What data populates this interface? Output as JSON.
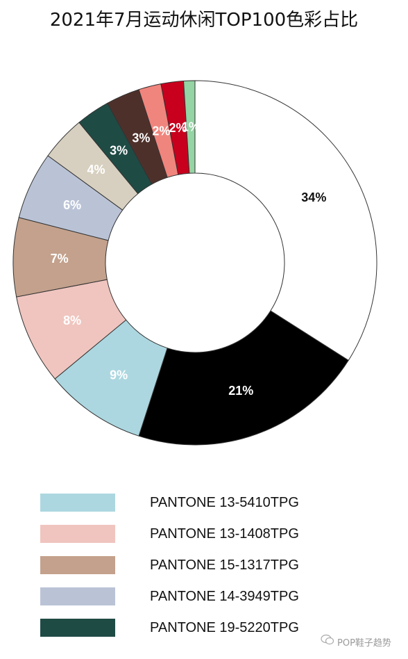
{
  "title": "2021年7月运动休闲TOP100色彩占比",
  "chart_data": {
    "type": "pie",
    "style": "donut",
    "title": "2021年7月运动休闲TOP100色彩占比",
    "slices": [
      {
        "label": "34%",
        "value": 34,
        "color": "#ffffff",
        "label_color": "#111111"
      },
      {
        "label": "21%",
        "value": 21,
        "color": "#000000",
        "label_color": "#ffffff"
      },
      {
        "label": "9%",
        "value": 9,
        "color": "#acd7e0",
        "label_color": "#ffffff"
      },
      {
        "label": "8%",
        "value": 8,
        "color": "#f0c5bf",
        "label_color": "#ffffff"
      },
      {
        "label": "7%",
        "value": 7,
        "color": "#c3a18c",
        "label_color": "#ffffff"
      },
      {
        "label": "6%",
        "value": 6,
        "color": "#bac3d6",
        "label_color": "#ffffff"
      },
      {
        "label": "4%",
        "value": 4,
        "color": "#d7d0c0",
        "label_color": "#ffffff"
      },
      {
        "label": "3%",
        "value": 3,
        "color": "#1f4b45",
        "label_color": "#ffffff"
      },
      {
        "label": "3%",
        "value": 3,
        "color": "#4e302b",
        "label_color": "#ffffff"
      },
      {
        "label": "2%",
        "value": 2,
        "color": "#f0857d",
        "label_color": "#ffffff"
      },
      {
        "label": "2%",
        "value": 2,
        "color": "#c8001e",
        "label_color": "#ffffff"
      },
      {
        "label": "1%",
        "value": 1,
        "color": "#95d4a4",
        "label_color": "#ffffff"
      }
    ],
    "legend": [
      {
        "label": "PANTONE 13-5410TPG",
        "color": "#acd7e0"
      },
      {
        "label": "PANTONE 13-1408TPG",
        "color": "#f0c5bf"
      },
      {
        "label": "PANTONE 15-1317TPG",
        "color": "#c3a18c"
      },
      {
        "label": "PANTONE 14-3949TPG",
        "color": "#bac3d6"
      },
      {
        "label": "PANTONE 19-5220TPG",
        "color": "#1f4b45"
      }
    ],
    "legend_position": "bottom"
  },
  "watermark": "POP鞋子趋势"
}
